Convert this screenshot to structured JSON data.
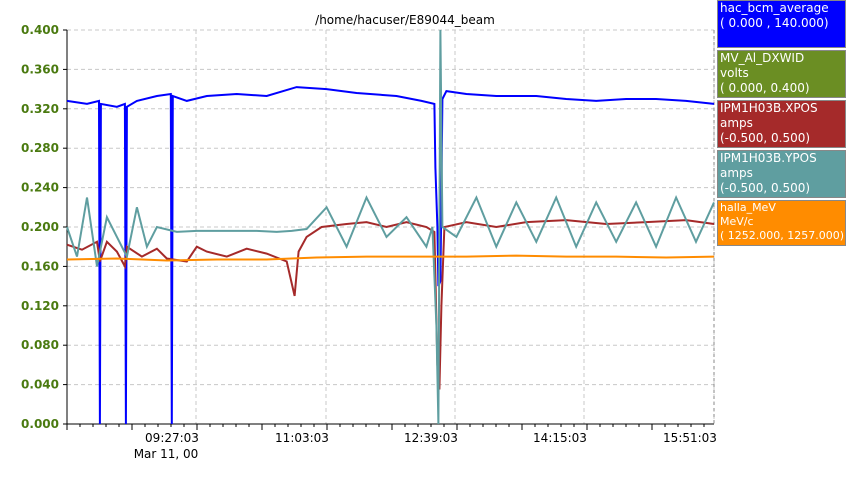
{
  "chart_data": {
    "type": "line",
    "title": "/home/hacuser/E89044_beam",
    "y_ticks": [
      "0.000",
      "0.040",
      "0.080",
      "0.120",
      "0.160",
      "0.200",
      "0.240",
      "0.280",
      "0.320",
      "0.360",
      "0.400"
    ],
    "ylim": [
      0.0,
      0.4
    ],
    "x_ticks": [
      "09:27:03",
      "11:03:03",
      "12:39:03",
      "14:15:03",
      "15:51:03"
    ],
    "x_date_label": "Mar 11, 00",
    "grid": true,
    "series": [
      {
        "name": "hac_bcm_average",
        "color": "#0000ff",
        "values": [
          [
            0,
            0.328
          ],
          [
            20,
            0.325
          ],
          [
            32,
            0.328
          ],
          [
            33,
            0.0
          ],
          [
            34,
            0.325
          ],
          [
            50,
            0.322
          ],
          [
            58,
            0.325
          ],
          [
            59,
            0.0
          ],
          [
            60,
            0.322
          ],
          [
            70,
            0.328
          ],
          [
            90,
            0.333
          ],
          [
            104,
            0.335
          ],
          [
            105,
            0.0
          ],
          [
            106,
            0.333
          ],
          [
            120,
            0.328
          ],
          [
            140,
            0.333
          ],
          [
            170,
            0.335
          ],
          [
            200,
            0.333
          ],
          [
            230,
            0.342
          ],
          [
            260,
            0.34
          ],
          [
            290,
            0.336
          ],
          [
            330,
            0.333
          ],
          [
            355,
            0.328
          ],
          [
            368,
            0.325
          ],
          [
            369,
            0.26
          ],
          [
            371,
            0.2
          ],
          [
            372,
            0.14
          ],
          [
            374,
            0.145
          ],
          [
            376,
            0.33
          ],
          [
            380,
            0.338
          ],
          [
            400,
            0.335
          ],
          [
            430,
            0.333
          ],
          [
            470,
            0.333
          ],
          [
            500,
            0.33
          ],
          [
            530,
            0.328
          ],
          [
            560,
            0.33
          ],
          [
            590,
            0.33
          ],
          [
            620,
            0.328
          ],
          [
            648,
            0.325
          ]
        ]
      },
      {
        "name": "MV_Al_DXWID",
        "color": "#6b8e23",
        "values": []
      },
      {
        "name": "IPM1H03B.XPOS",
        "color": "#a52a2a",
        "values": [
          [
            0,
            0.182
          ],
          [
            15,
            0.177
          ],
          [
            30,
            0.185
          ],
          [
            33,
            0.165
          ],
          [
            40,
            0.185
          ],
          [
            50,
            0.175
          ],
          [
            58,
            0.16
          ],
          [
            60,
            0.18
          ],
          [
            75,
            0.17
          ],
          [
            90,
            0.178
          ],
          [
            100,
            0.168
          ],
          [
            120,
            0.165
          ],
          [
            130,
            0.18
          ],
          [
            140,
            0.175
          ],
          [
            160,
            0.17
          ],
          [
            180,
            0.178
          ],
          [
            200,
            0.173
          ],
          [
            220,
            0.165
          ],
          [
            228,
            0.13
          ],
          [
            232,
            0.175
          ],
          [
            240,
            0.19
          ],
          [
            255,
            0.2
          ],
          [
            280,
            0.203
          ],
          [
            300,
            0.205
          ],
          [
            320,
            0.2
          ],
          [
            340,
            0.205
          ],
          [
            360,
            0.2
          ],
          [
            368,
            0.195
          ],
          [
            371,
            0.06
          ],
          [
            373,
            0.035
          ],
          [
            375,
            0.12
          ],
          [
            378,
            0.2
          ],
          [
            400,
            0.205
          ],
          [
            430,
            0.2
          ],
          [
            460,
            0.205
          ],
          [
            500,
            0.207
          ],
          [
            540,
            0.203
          ],
          [
            580,
            0.205
          ],
          [
            620,
            0.207
          ],
          [
            648,
            0.203
          ]
        ]
      },
      {
        "name": "IPM1H03B.YPOS",
        "color": "#5f9ea0",
        "values": [
          [
            0,
            0.2
          ],
          [
            10,
            0.17
          ],
          [
            20,
            0.23
          ],
          [
            30,
            0.16
          ],
          [
            40,
            0.21
          ],
          [
            50,
            0.19
          ],
          [
            60,
            0.17
          ],
          [
            70,
            0.22
          ],
          [
            80,
            0.18
          ],
          [
            90,
            0.2
          ],
          [
            110,
            0.195
          ],
          [
            130,
            0.196
          ],
          [
            150,
            0.196
          ],
          [
            170,
            0.196
          ],
          [
            190,
            0.196
          ],
          [
            210,
            0.195
          ],
          [
            225,
            0.196
          ],
          [
            240,
            0.198
          ],
          [
            260,
            0.22
          ],
          [
            280,
            0.18
          ],
          [
            300,
            0.23
          ],
          [
            320,
            0.19
          ],
          [
            340,
            0.21
          ],
          [
            360,
            0.18
          ],
          [
            366,
            0.2
          ],
          [
            370,
            0.1
          ],
          [
            372,
            0.0
          ],
          [
            374,
            0.4
          ],
          [
            376,
            0.2
          ],
          [
            390,
            0.19
          ],
          [
            410,
            0.23
          ],
          [
            430,
            0.18
          ],
          [
            450,
            0.225
          ],
          [
            470,
            0.185
          ],
          [
            490,
            0.23
          ],
          [
            510,
            0.18
          ],
          [
            530,
            0.225
          ],
          [
            550,
            0.185
          ],
          [
            570,
            0.225
          ],
          [
            590,
            0.18
          ],
          [
            610,
            0.23
          ],
          [
            630,
            0.185
          ],
          [
            648,
            0.225
          ]
        ]
      },
      {
        "name": "halla_MeV",
        "color": "#ff8c00",
        "values": [
          [
            0,
            0.167
          ],
          [
            50,
            0.168
          ],
          [
            100,
            0.166
          ],
          [
            150,
            0.167
          ],
          [
            200,
            0.167
          ],
          [
            250,
            0.169
          ],
          [
            300,
            0.17
          ],
          [
            350,
            0.17
          ],
          [
            400,
            0.17
          ],
          [
            450,
            0.171
          ],
          [
            500,
            0.17
          ],
          [
            550,
            0.17
          ],
          [
            600,
            0.169
          ],
          [
            648,
            0.17
          ]
        ]
      }
    ]
  },
  "legend": [
    {
      "line1": "hac_bcm_average",
      "line2": "",
      "line3": "( 0.000   ,  140.000)",
      "color": "#0000ff"
    },
    {
      "line1": "MV_Al_DXWID",
      "line2": "volts",
      "line3": "( 0.000,  0.400)",
      "color": "#6b8e23"
    },
    {
      "line1": "IPM1H03B.XPOS",
      "line2": "amps",
      "line3": "(-0.500,  0.500)",
      "color": "#a52a2a"
    },
    {
      "line1": "IPM1H03B.YPOS",
      "line2": "amps",
      "line3": "(-0.500,  0.500)",
      "color": "#5f9ea0"
    },
    {
      "line1": "halla_MeV",
      "line2": "MeV/c",
      "line3": "( 1252.000,  1257.000)",
      "color": "#ff8c00"
    }
  ]
}
